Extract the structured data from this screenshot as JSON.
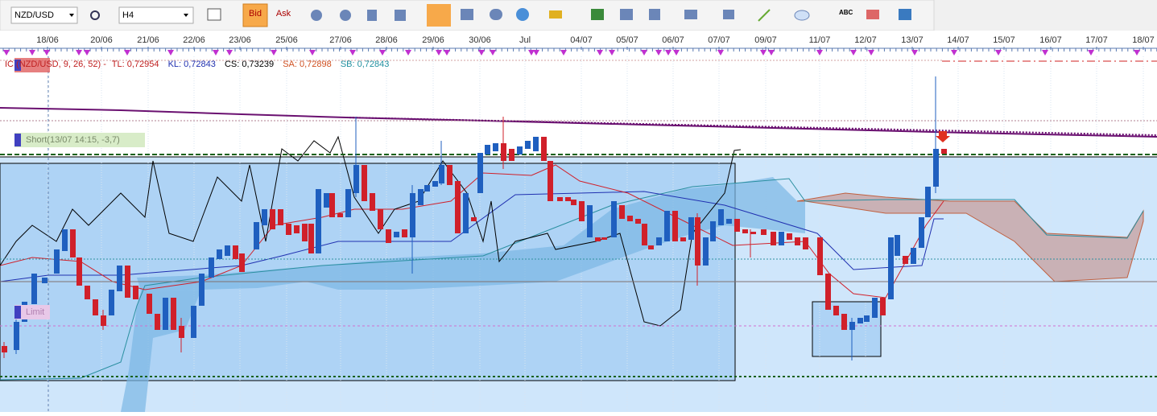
{
  "toolbar": {
    "symbol": "NZD/USD",
    "timeframe": "H4",
    "bid": "Bid",
    "ask": "Ask",
    "text_tool": "ABC"
  },
  "time_axis": {
    "labels": [
      "18/06",
      "20/06",
      "21/06",
      "22/06",
      "23/06",
      "25/06",
      "27/06",
      "28/06",
      "29/06",
      "30/06",
      "Jul",
      "04/07",
      "05/07",
      "06/07",
      "07/07",
      "09/07",
      "11/07",
      "12/07",
      "13/07",
      "14/07",
      "15/07",
      "16/07",
      "17/07",
      "18/07"
    ]
  },
  "indicator_legend": {
    "name": "IC (NZD/USD, 9, 26, 52) -",
    "tl": "TL: 0,72954",
    "kl": "KL: 0,72843",
    "cs": "CS: 0,73239",
    "sa": "SA: 0,72898",
    "sb": "SB: 0,72843"
  },
  "annotations": {
    "short": "Short(13/07 14:15, -3,7)",
    "limit": "Limit"
  }
}
